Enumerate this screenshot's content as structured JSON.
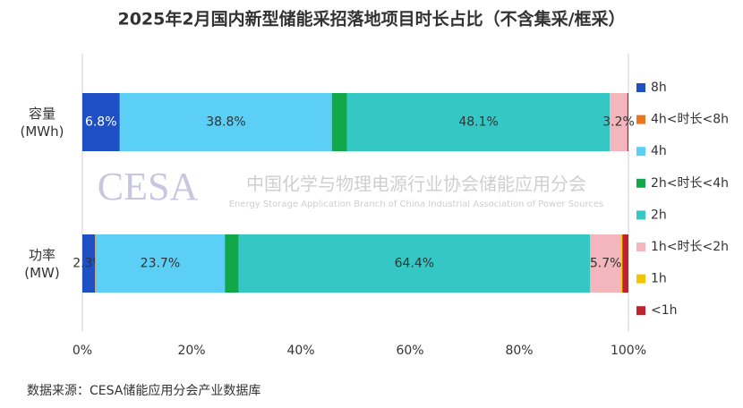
{
  "chart_data": {
    "type": "stacked-bar-horizontal",
    "title": "2025年2月国内新型储能采招落地项目时长占比（不含集采/框采）",
    "categories": [
      "容量\n(MWh)",
      "功率\n(MW)"
    ],
    "series": [
      {
        "name": "8h",
        "color": "#1f4fc4",
        "values": [
          6.8,
          2.3
        ],
        "value_labels": [
          "6.8%",
          "2.3%"
        ]
      },
      {
        "name": "4h<时长<8h",
        "color": "#e87722",
        "values": [
          0.1,
          0.1
        ]
      },
      {
        "name": "4h",
        "color": "#5bcff5",
        "values": [
          38.8,
          23.7
        ],
        "value_labels": [
          "38.8%",
          "23.7%"
        ]
      },
      {
        "name": "2h<时长<4h",
        "color": "#12a84a",
        "values": [
          2.8,
          2.5
        ]
      },
      {
        "name": "2h",
        "color": "#35c7c4",
        "values": [
          48.1,
          64.4
        ],
        "value_labels": [
          "48.1%",
          "64.4%"
        ]
      },
      {
        "name": "1h<时长<2h",
        "color": "#f4b6bd",
        "values": [
          3.2,
          5.7
        ],
        "value_labels": [
          "3.2%",
          "5.7%"
        ]
      },
      {
        "name": "1h",
        "color": "#f5c400",
        "values": [
          0,
          0.2
        ]
      },
      {
        "name": "<1h",
        "color": "#c0232d",
        "values": [
          0.2,
          1.1
        ]
      }
    ],
    "xlim": [
      0,
      100
    ],
    "xticks": [
      {
        "value": 0,
        "label": "0%"
      },
      {
        "value": 20,
        "label": "20%"
      },
      {
        "value": 40,
        "label": "40%"
      },
      {
        "value": 60,
        "label": "60%"
      },
      {
        "value": 80,
        "label": "80%"
      },
      {
        "value": 100,
        "label": "100%"
      }
    ],
    "legend": "right",
    "watermark": {
      "logo": "CESA",
      "name": "中国化学与物理电源行业协会储能应用分会",
      "name_en": "Energy Storage Application Branch of China Industrial Association of Power Sources"
    },
    "source": "数据来源：CESA储能应用分会产业数据库"
  }
}
